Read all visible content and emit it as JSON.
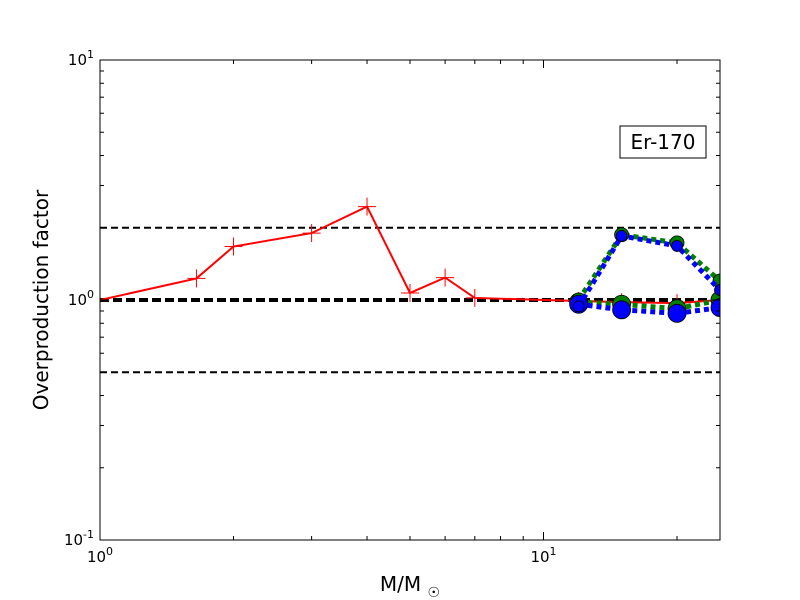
{
  "chart_data": {
    "type": "line",
    "xlabel": "M/M☉",
    "ylabel": "Overproduction factor",
    "xscale": "log",
    "yscale": "log",
    "xlim": [
      1,
      25
    ],
    "ylim": [
      0.1,
      10
    ],
    "x_ticks": [
      {
        "base": "10",
        "exp": "0"
      },
      {
        "base": "10",
        "exp": "1"
      }
    ],
    "y_ticks": [
      {
        "base": "10",
        "exp": "-1"
      },
      {
        "base": "10",
        "exp": "0"
      },
      {
        "base": "10",
        "exp": "1"
      }
    ],
    "annotation": "Er-170",
    "annotation_placement": "top-right",
    "reference_lines": [
      {
        "y": 2.0,
        "style": "dashed",
        "color": "#000000",
        "width": 2
      },
      {
        "y": 1.0,
        "style": "dashed",
        "color": "#000000",
        "width": 4
      },
      {
        "y": 0.5,
        "style": "dashed",
        "color": "#000000",
        "width": 2
      }
    ],
    "series": [
      {
        "color": "#ff0000",
        "line": "solid",
        "marker": "plus",
        "x": [
          1,
          1.65,
          2,
          3,
          4,
          5,
          6,
          7,
          12,
          15,
          20,
          25
        ],
        "y": [
          1.0,
          1.23,
          1.67,
          1.9,
          2.45,
          1.07,
          1.24,
          1.02,
          0.99,
          0.98,
          0.97,
          1.0
        ]
      },
      {
        "color": "#008000",
        "line": "dotted",
        "marker": "circle",
        "marker_size": "large",
        "x": [
          12,
          15,
          20,
          25
        ],
        "y": [
          0.98,
          0.96,
          0.92,
          1.0
        ]
      },
      {
        "color": "#008000",
        "line": "dotted",
        "marker": "circle",
        "marker_size": "medium",
        "x": [
          12,
          15,
          20,
          25
        ],
        "y": [
          1.0,
          1.87,
          1.73,
          1.2
        ]
      },
      {
        "color": "#0000ff",
        "line": "dotted",
        "marker": "circle",
        "marker_size": "large",
        "x": [
          12,
          15,
          20,
          25
        ],
        "y": [
          0.96,
          0.91,
          0.88,
          0.93
        ]
      },
      {
        "color": "#0000ff",
        "line": "dotted",
        "marker": "circle",
        "marker_size": "small",
        "x": [
          12,
          15,
          20,
          25
        ],
        "y": [
          0.94,
          1.85,
          1.68,
          1.1
        ]
      }
    ]
  }
}
